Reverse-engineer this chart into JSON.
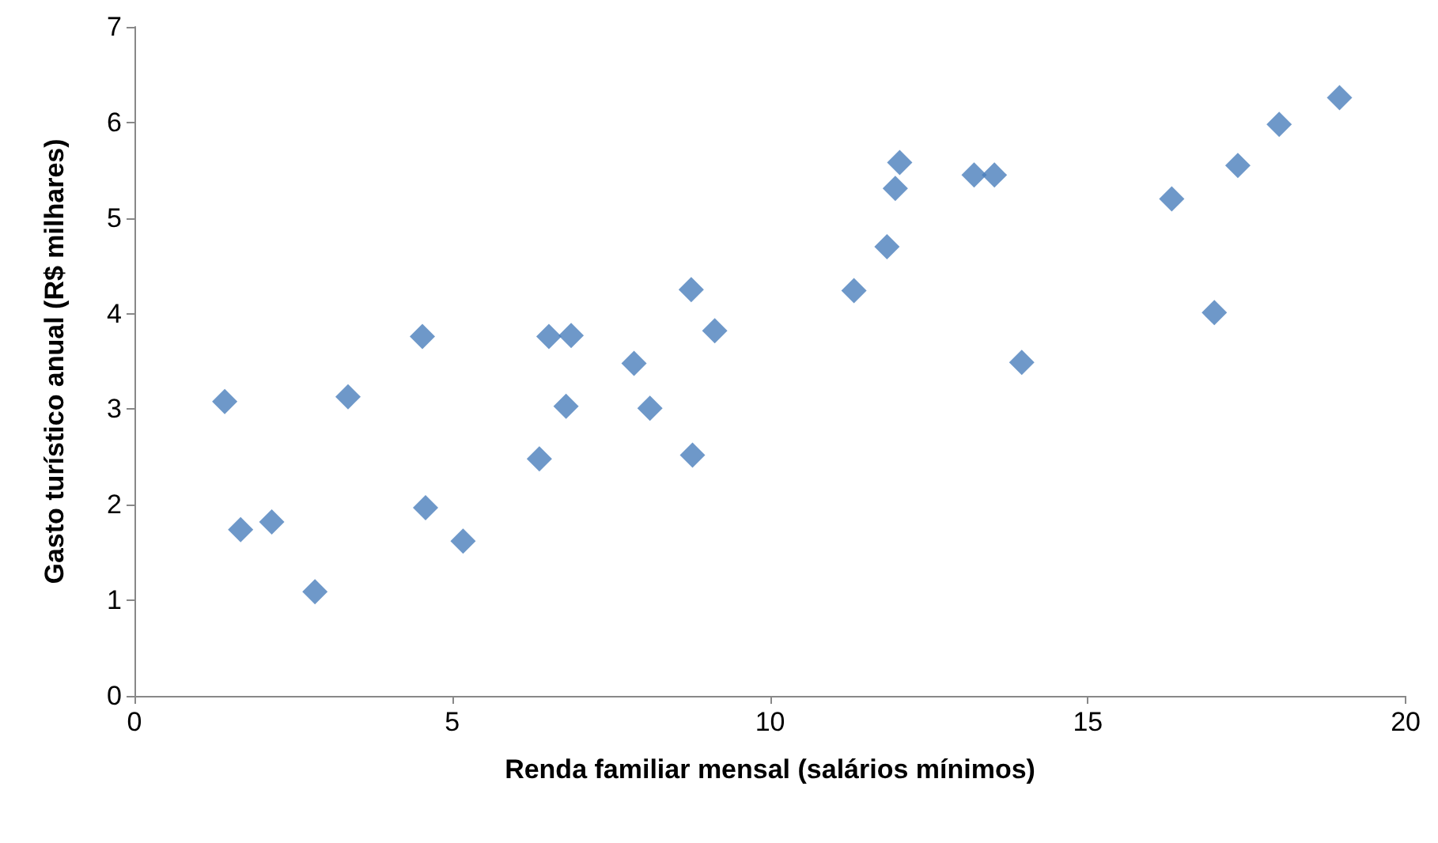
{
  "chart_data": {
    "type": "scatter",
    "xlabel": "Renda familiar mensal (salários mínimos)",
    "ylabel": "Gasto turístico anual (R$ milhares)",
    "x": [
      1.42,
      1.67,
      2.16,
      2.84,
      3.36,
      4.53,
      4.58,
      5.17,
      6.37,
      6.52,
      6.87,
      6.79,
      7.86,
      8.11,
      8.76,
      8.78,
      9.13,
      11.32,
      11.84,
      11.97,
      12.04,
      13.21,
      13.53,
      13.96,
      16.32,
      16.99,
      17.36,
      18.01,
      18.96
    ],
    "values": [
      3.08,
      1.74,
      1.82,
      1.09,
      3.13,
      3.76,
      1.97,
      1.62,
      2.48,
      3.76,
      3.77,
      3.03,
      3.48,
      3.01,
      4.25,
      2.52,
      3.82,
      4.24,
      4.7,
      5.31,
      5.58,
      5.45,
      5.45,
      3.49,
      5.2,
      4.01,
      5.55,
      5.98,
      6.26
    ],
    "color": "#4a7ebb",
    "marker": "diamond",
    "grid": false,
    "xlim": [
      0,
      20
    ],
    "xticks": [
      0,
      5,
      10,
      15,
      20
    ],
    "ylim": [
      0,
      7
    ],
    "yticks": [
      0,
      1,
      2,
      3,
      4,
      5,
      6,
      7
    ]
  }
}
